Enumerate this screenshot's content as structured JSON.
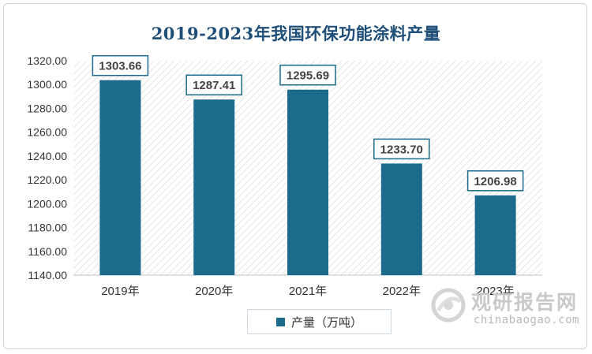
{
  "chart_data": {
    "type": "bar",
    "title": "2019-2023年我国环保功能涂料产量",
    "categories": [
      "2019年",
      "2020年",
      "2021年",
      "2022年",
      "2023年"
    ],
    "series": [
      {
        "name": "产量（万吨）",
        "values": [
          1303.66,
          1287.41,
          1295.69,
          1233.7,
          1206.98
        ]
      }
    ],
    "value_labels": [
      "1303.66",
      "1287.41",
      "1295.69",
      "1233.70",
      "1206.98"
    ],
    "ylim": [
      1140,
      1320
    ],
    "yticks": [
      "1140.00",
      "1160.00",
      "1180.00",
      "1200.00",
      "1220.00",
      "1240.00",
      "1260.00",
      "1280.00",
      "1300.00",
      "1320.00"
    ],
    "xlabel": "",
    "ylabel": "",
    "legend_position": "bottom",
    "bar_color": "#1c6a8c"
  },
  "watermark": {
    "cn": "观研报告网",
    "en": "chinabaogao.com"
  }
}
